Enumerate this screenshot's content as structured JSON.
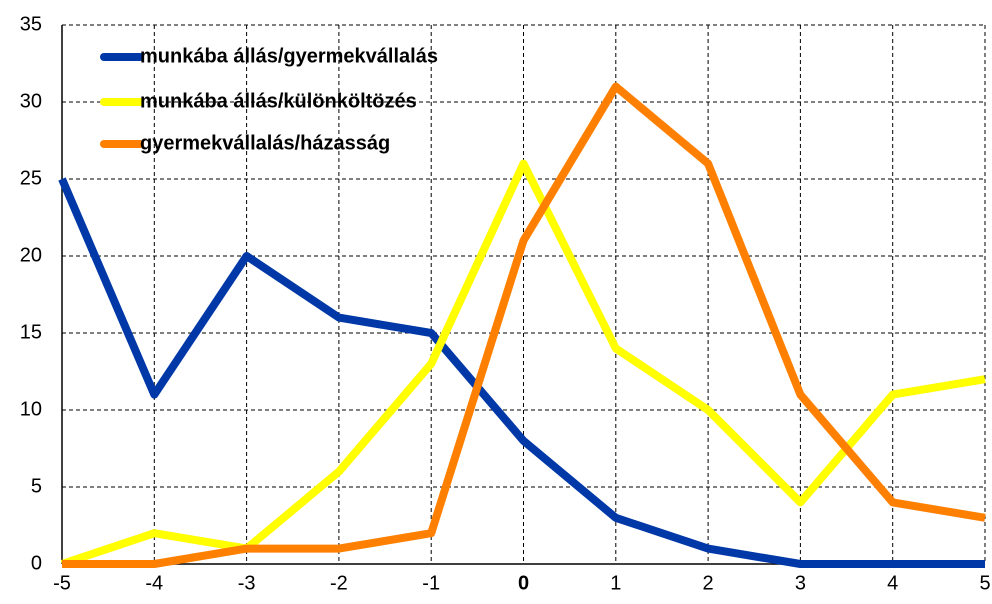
{
  "chart_data": {
    "type": "line",
    "x": [
      -5,
      -4,
      -3,
      -2,
      -1,
      0,
      1,
      2,
      3,
      4,
      5
    ],
    "series": [
      {
        "name": "munkába állás/gyermekvállalás",
        "color": "#0038a8",
        "values": [
          25,
          11,
          20,
          16,
          15,
          8,
          3,
          1,
          0,
          0,
          0
        ]
      },
      {
        "name": "munkába állás/különköltözés",
        "color": "#ffff00",
        "values": [
          0,
          2,
          1,
          6,
          13,
          26,
          14,
          10,
          4,
          11,
          12
        ]
      },
      {
        "name": "gyermekvállalás/házasság",
        "color": "#ff8000",
        "values": [
          0,
          0,
          1,
          1,
          2,
          21,
          31,
          26,
          11,
          4,
          3
        ]
      }
    ],
    "xlim": [
      -5,
      5
    ],
    "xticks": [
      -5,
      -4,
      -3,
      -2,
      -1,
      0,
      1,
      2,
      3,
      4,
      5
    ],
    "ylim": [
      0,
      35
    ],
    "yticks": [
      0,
      5,
      10,
      15,
      20,
      25,
      30,
      35
    ],
    "grid": true,
    "legend": "upper left"
  }
}
